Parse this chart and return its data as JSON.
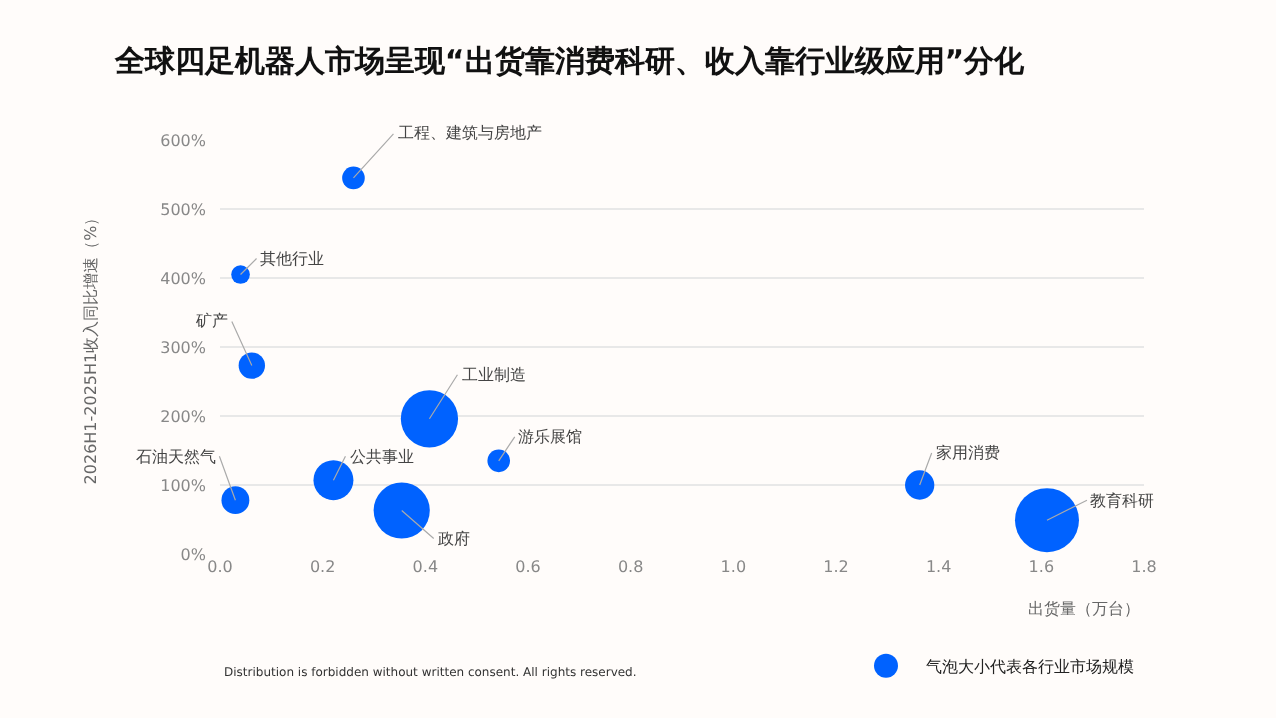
{
  "chart_data": {
    "type": "bubble",
    "title": "全球四足机器人市场呈现“出货靠消费科研、收入靠行业级应用”分化",
    "xlabel": "出货量（万台）",
    "ylabel": "2026H1-2025H1收入同比增速（%）",
    "series": [
      {
        "name": "气泡大小代表各行业市场规模",
        "color": "#0062ff",
        "x": [
          0.26,
          0.04,
          0.062,
          0.408,
          0.543,
          0.221,
          0.354,
          0.03,
          1.363,
          1.611
        ],
        "values": [
          545,
          405,
          273,
          196,
          135,
          107,
          63,
          78,
          100,
          49
        ],
        "sizes": [
          0.125,
          0.085,
          0.17,
          0.8,
          0.125,
          0.39,
          0.77,
          0.19,
          0.21,
          1
        ]
      }
    ],
    "xlim": [
      0,
      1.8
    ],
    "xticks": [
      {
        "value": 0,
        "label": "0.0"
      },
      {
        "value": 0.2,
        "label": "0.2"
      },
      {
        "value": 0.4,
        "label": "0.4"
      },
      {
        "value": 0.6,
        "label": "0.6"
      },
      {
        "value": 0.8,
        "label": "0.8"
      },
      {
        "value": 1,
        "label": "1.0"
      },
      {
        "value": 1.2,
        "label": "1.2"
      },
      {
        "value": 1.4,
        "label": "1.4"
      },
      {
        "value": 1.6,
        "label": "1.6"
      },
      {
        "value": 1.8,
        "label": "1.8"
      }
    ],
    "ylim": [
      0,
      600
    ],
    "yticks": [
      {
        "value": 0,
        "label": "0%"
      },
      {
        "value": 100,
        "label": "100%"
      },
      {
        "value": 200,
        "label": "200%"
      },
      {
        "value": 300,
        "label": "300%"
      },
      {
        "value": 400,
        "label": "400%"
      },
      {
        "value": 500,
        "label": "500%"
      },
      {
        "value": 600,
        "label": "600%"
      }
    ],
    "grid": "y",
    "legend": "bottom right",
    "annotations": [
      {
        "text": "工程、建筑与房地产",
        "x": 0.26,
        "y": 545
      },
      {
        "text": "其他行业",
        "x": 0.04,
        "y": 405
      },
      {
        "text": "矿产",
        "x": 0.062,
        "y": 273
      },
      {
        "text": "工业制造",
        "x": 0.408,
        "y": 196
      },
      {
        "text": "游乐展馆",
        "x": 0.543,
        "y": 135
      },
      {
        "text": "公共事业",
        "x": 0.221,
        "y": 107
      },
      {
        "text": "政府",
        "x": 0.354,
        "y": 63
      },
      {
        "text": "石油天然气",
        "x": 0.03,
        "y": 78
      },
      {
        "text": "家用消费",
        "x": 1.363,
        "y": 100
      },
      {
        "text": "教育科研",
        "x": 1.611,
        "y": 49
      },
      "Distribution is forbidden without written consent. All rights reserved."
    ]
  }
}
